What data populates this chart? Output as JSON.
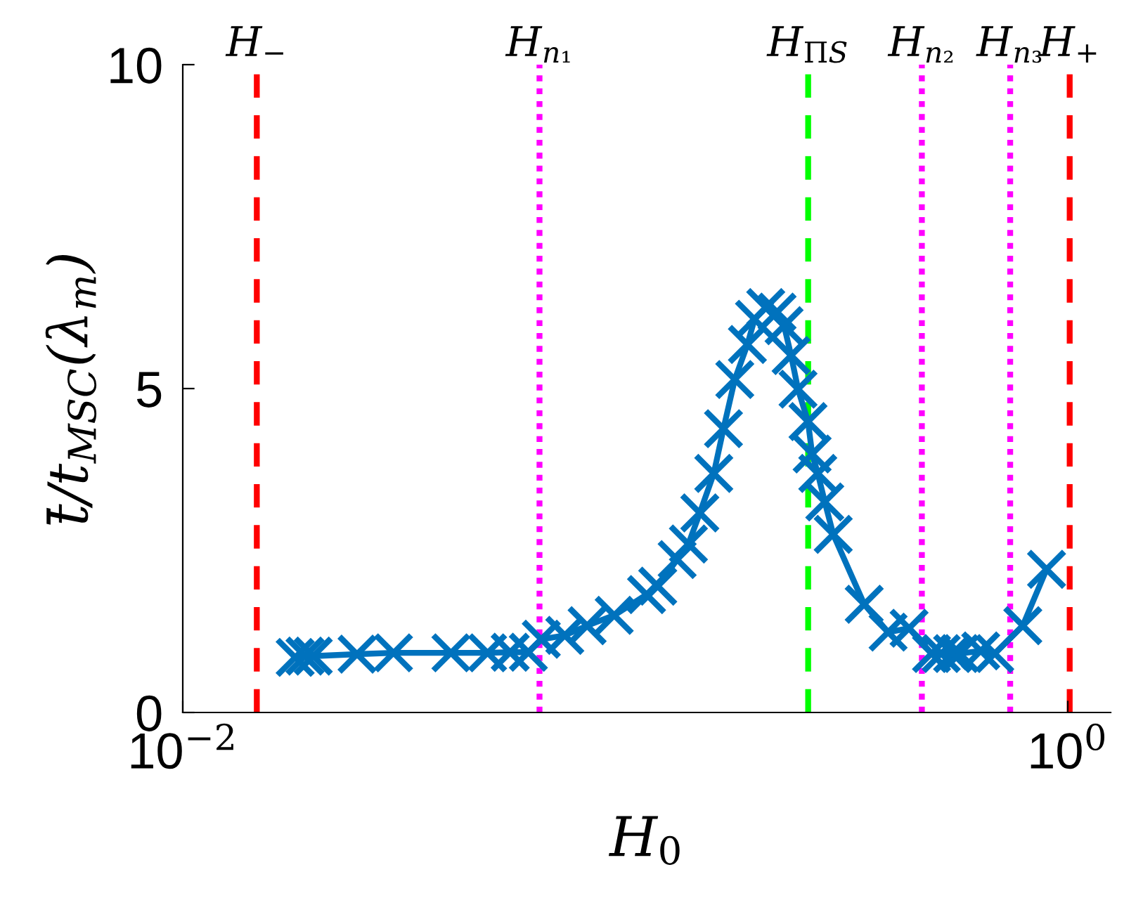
{
  "chart_data": {
    "type": "line",
    "xlabel": "H$_{0}$",
    "ylabel": "t̄/t$_{MSC}$(λ$_{m}$)",
    "log": "x",
    "xlim": [
      0.01,
      1.25
    ],
    "xticks": [
      {
        "value": 0.01,
        "label": "10$^{−2}$"
      },
      {
        "value": 1,
        "label": "10$^{0}$"
      }
    ],
    "ylim": [
      0,
      10
    ],
    "yticks": [
      0,
      5,
      10
    ],
    "grid": false,
    "marker": "cross",
    "line_style": "solid",
    "series": [
      {
        "color": "#0072bd",
        "x": [
          0.01795,
          0.01889,
          0.01972,
          0.02477,
          0.02994,
          0.04037,
          0.04885,
          0.05495,
          0.0604,
          0.0646,
          0.073,
          0.082,
          0.0944,
          0.1117,
          0.1184,
          0.131,
          0.1389,
          0.1474,
          0.1585,
          0.1667,
          0.1768,
          0.1888,
          0.1959,
          0.2077,
          0.2203,
          0.2285,
          0.237,
          0.2457,
          0.2588,
          0.2644,
          0.2723,
          0.2824,
          0.2951,
          0.3467,
          0.3926,
          0.4379,
          0.4921,
          0.5176,
          0.5491,
          0.57,
          0.6357,
          0.6839,
          0.7913,
          0.8954
        ],
        "values": [
          0.85,
          0.87,
          0.87,
          0.9,
          0.92,
          0.92,
          0.92,
          0.93,
          0.93,
          1.13,
          1.19,
          1.34,
          1.5,
          1.82,
          1.95,
          2.36,
          2.6,
          3.08,
          3.69,
          4.38,
          5.14,
          5.68,
          6.07,
          6.25,
          6.18,
          5.97,
          5.51,
          4.99,
          4.49,
          3.99,
          3.69,
          3.25,
          2.75,
          1.67,
          1.24,
          1.3,
          0.91,
          0.91,
          0.91,
          0.91,
          0.95,
          0.91,
          1.34,
          2.21
        ]
      }
    ],
    "ref_lines": [
      {
        "axis": "x",
        "value": 0.0147,
        "label": "H$_{−}$",
        "color": "#ff0000",
        "line_style": "dashed"
      },
      {
        "axis": "x",
        "value": 0.064,
        "label": "H$_{n₁}$",
        "color": "#ff00ff",
        "line_style": "dotted"
      },
      {
        "axis": "x",
        "value": 0.259,
        "label": "H$_{ΠS}$",
        "color": "#00ff00",
        "line_style": "dashed"
      },
      {
        "axis": "x",
        "value": 0.468,
        "label": "H$_{n₂}$",
        "color": "#ff00ff",
        "line_style": "dotted"
      },
      {
        "axis": "x",
        "value": 0.741,
        "label": "H$_{n₃}$",
        "color": "#ff00ff",
        "line_style": "dotted"
      },
      {
        "axis": "x",
        "value": 1.01,
        "label": "H$_{+}$",
        "color": "#ff0000",
        "line_style": "dashed"
      }
    ]
  }
}
